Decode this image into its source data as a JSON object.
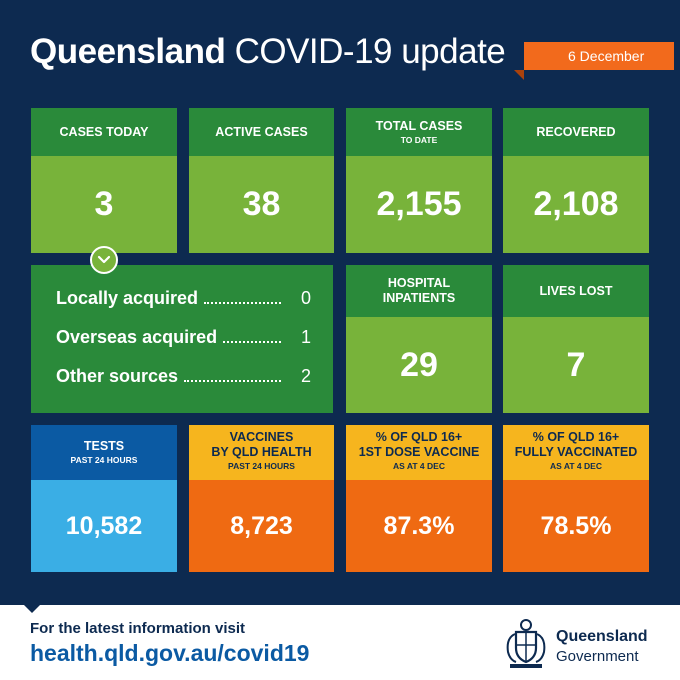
{
  "header": {
    "title_bold": "Queensland",
    "title_rest": "COVID-19 update",
    "date": "6 December"
  },
  "colors": {
    "background": "#0d2a50",
    "green_dark": "#2a8a3a",
    "green_light": "#78b33a",
    "blue_dark": "#0b5aa3",
    "blue_light": "#3aaee5",
    "yellow": "#f6b51e",
    "orange": "#ef6a12"
  },
  "stats": {
    "cases_today": {
      "label": "CASES TODAY",
      "value": "3"
    },
    "active_cases": {
      "label": "ACTIVE CASES",
      "value": "38"
    },
    "total_cases": {
      "label": "TOTAL CASES",
      "sub": "TO DATE",
      "value": "2,155"
    },
    "recovered": {
      "label": "RECOVERED",
      "value": "2,108"
    },
    "hospital": {
      "label_line1": "HOSPITAL",
      "label_line2": "INPATIENTS",
      "value": "29"
    },
    "lives_lost": {
      "label": "LIVES LOST",
      "value": "7"
    },
    "tests": {
      "label": "TESTS",
      "sub": "PAST 24 HOURS",
      "value": "10,582"
    },
    "vaccines": {
      "label_line1": "VACCINES",
      "label_line2": "BY QLD HEALTH",
      "sub": "PAST 24 HOURS",
      "value": "8,723"
    },
    "first_dose": {
      "label_line1": "% OF QLD 16+",
      "label_line2": "1ST DOSE VACCINE",
      "sub": "AS AT 4 DEC",
      "value": "87.3%"
    },
    "fully_vaccinated": {
      "label_line1": "% OF QLD 16+",
      "label_line2": "FULLY VACCINATED",
      "sub": "AS AT 4 DEC",
      "value": "78.5%"
    }
  },
  "breakdown": [
    {
      "label": "Locally acquired",
      "value": "0"
    },
    {
      "label": "Overseas acquired",
      "value": "1"
    },
    {
      "label": "Other sources",
      "value": "2"
    }
  ],
  "footer": {
    "prompt": "For the latest information visit",
    "link": "health.qld.gov.au/covid19",
    "gov_name": "Queensland",
    "gov_sub": "Government",
    "logo_icon": "queensland-coat-of-arms"
  }
}
